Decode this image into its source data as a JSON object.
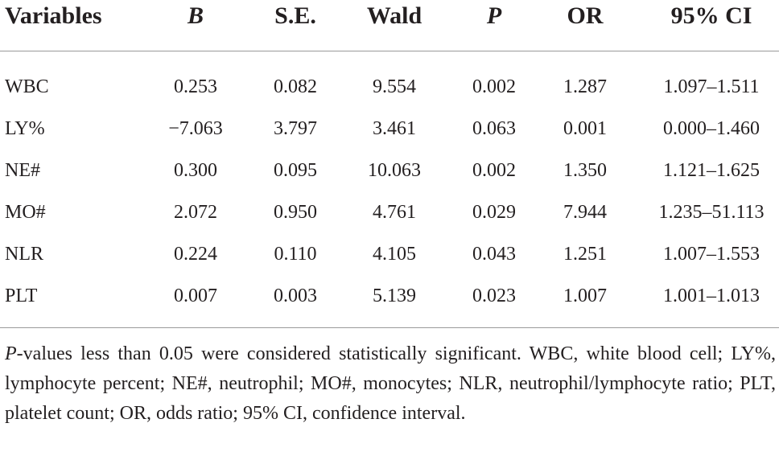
{
  "table": {
    "headers": {
      "variables": "Variables",
      "b": "B",
      "se": "S.E.",
      "wald": "Wald",
      "p": "P",
      "or": "OR",
      "ci": "95% CI"
    },
    "rows": [
      {
        "variable": "WBC",
        "b": "0.253",
        "se": "0.082",
        "wald": "9.554",
        "p": "0.002",
        "or": "1.287",
        "ci": "1.097–1.511"
      },
      {
        "variable": "LY%",
        "b": "−7.063",
        "se": "3.797",
        "wald": "3.461",
        "p": "0.063",
        "or": "0.001",
        "ci": "0.000–1.460"
      },
      {
        "variable": "NE#",
        "b": "0.300",
        "se": "0.095",
        "wald": "10.063",
        "p": "0.002",
        "or": "1.350",
        "ci": "1.121–1.625"
      },
      {
        "variable": "MO#",
        "b": "2.072",
        "se": "0.950",
        "wald": "4.761",
        "p": "0.029",
        "or": "7.944",
        "ci": "1.235–51.113"
      },
      {
        "variable": "NLR",
        "b": "0.224",
        "se": "0.110",
        "wald": "4.105",
        "p": "0.043",
        "or": "1.251",
        "ci": "1.007–1.553"
      },
      {
        "variable": "PLT",
        "b": "0.007",
        "se": "0.003",
        "wald": "5.139",
        "p": "0.023",
        "or": "1.007",
        "ci": "1.001–1.013"
      }
    ]
  },
  "footnote": {
    "p_label": "P",
    "text": "-values less than 0.05 were considered statistically significant. WBC, white blood cell; LY%, lymphocyte percent; NE#, neutrophil; MO#, monocytes; NLR, neutrophil/lymphocyte ratio; PLT, platelet count; OR, odds ratio; 95% CI, confidence interval."
  },
  "colors": {
    "text": "#231f20",
    "rule": "#9a9a9a"
  }
}
